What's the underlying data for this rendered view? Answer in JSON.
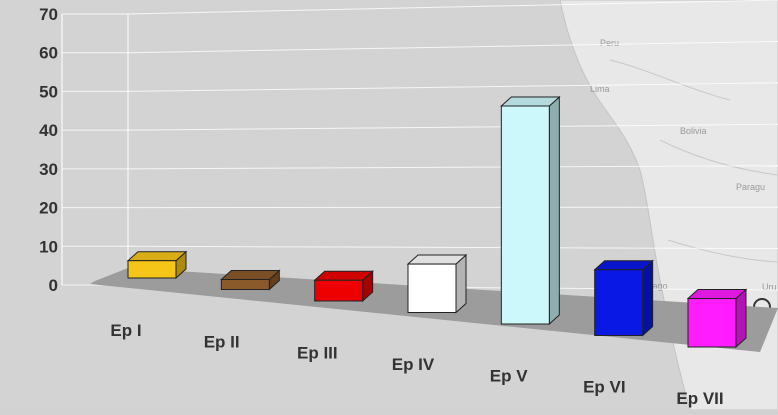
{
  "map_labels": {
    "peru": "Peru",
    "lima": "Lima",
    "bolivia": "Bolivia",
    "chile_santiago": "Chile\nSantiago",
    "paraguay": "Paragu",
    "uruguay": "Uru"
  },
  "chart_data": {
    "type": "bar",
    "categories": [
      "Ep I",
      "Ep II",
      "Ep III",
      "Ep IV",
      "Ep V",
      "Ep VI",
      "Ep VII"
    ],
    "values": [
      5,
      2,
      6,
      14,
      63,
      19,
      14
    ],
    "colors": [
      "#f5c518",
      "#8b5a2b",
      "#ee0000",
      "#ffffff",
      "#ccf8fb",
      "#0a18e6",
      "#ff1cff"
    ],
    "ylim": [
      0,
      70
    ],
    "y_ticks": [
      "0",
      "10",
      "20",
      "30",
      "40",
      "50",
      "60",
      "70"
    ],
    "grid": true,
    "title": "",
    "xlabel": "",
    "ylabel": ""
  }
}
